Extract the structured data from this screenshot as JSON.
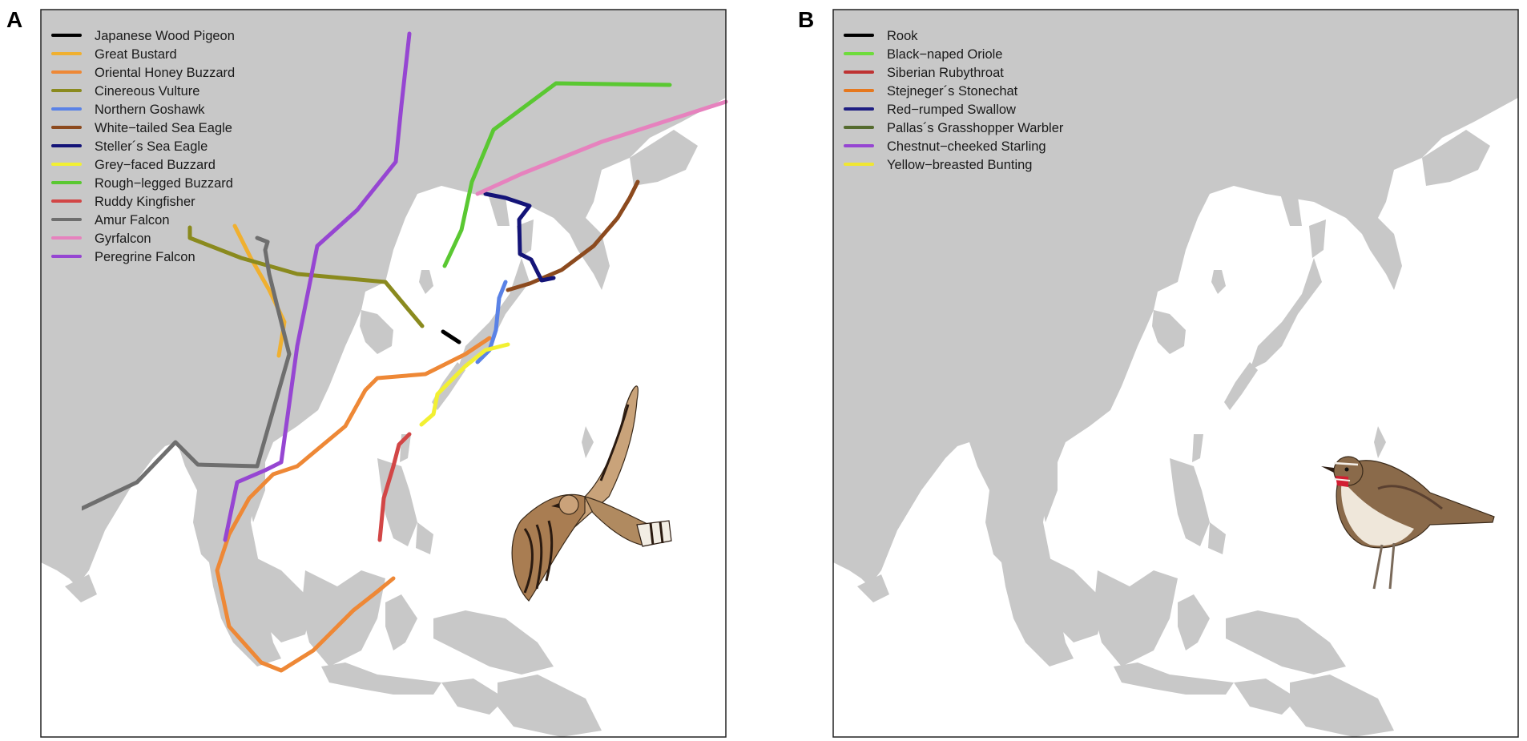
{
  "panels": [
    {
      "letter": "A",
      "legend": [
        {
          "label": "Japanese Wood Pigeon",
          "color": "#000000"
        },
        {
          "label": "Great Bustard",
          "color": "#f0b030"
        },
        {
          "label": "Oriental Honey Buzzard",
          "color": "#ee8836"
        },
        {
          "label": "Cinereous Vulture",
          "color": "#8a8a1e"
        },
        {
          "label": "Northern Goshawk",
          "color": "#5a82e6"
        },
        {
          "label": "White−tailed Sea Eagle",
          "color": "#8c4a1e"
        },
        {
          "label": "Steller´s Sea Eagle",
          "color": "#141478"
        },
        {
          "label": "Grey−faced Buzzard",
          "color": "#f2f032"
        },
        {
          "label": "Rough−legged Buzzard",
          "color": "#5ac832"
        },
        {
          "label": "Ruddy Kingfisher",
          "color": "#d24646"
        },
        {
          "label": "Amur Falcon",
          "color": "#6e6e6e"
        },
        {
          "label": "Gyrfalcon",
          "color": "#e682be"
        },
        {
          "label": "Peregrine Falcon",
          "color": "#9646d2"
        }
      ],
      "illustration": "oriental-honey-buzzard-illustration"
    },
    {
      "letter": "B",
      "legend": [
        {
          "label": "Rook",
          "color": "#000000"
        },
        {
          "label": "Black−naped Oriole",
          "color": "#6edc3c"
        },
        {
          "label": "Siberian Rubythroat",
          "color": "#be3232"
        },
        {
          "label": "Stejneger´s Stonechat",
          "color": "#e6781e"
        },
        {
          "label": "Red−rumped Swallow",
          "color": "#1e1e82"
        },
        {
          "label": "Pallas´s Grasshopper Warbler",
          "color": "#556b2f"
        },
        {
          "label": "Chestnut−cheeked Starling",
          "color": "#9646d2"
        },
        {
          "label": "Yellow−breasted Bunting",
          "color": "#f0e632"
        }
      ],
      "illustration": "siberian-rubythroat-illustration"
    }
  ]
}
